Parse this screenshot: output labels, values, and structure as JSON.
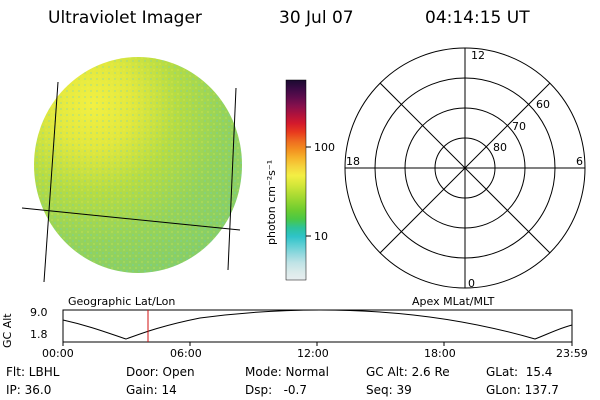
{
  "header": {
    "instrument": "Ultraviolet Imager",
    "date": "30 Jul 07",
    "time": "04:14:15 UT"
  },
  "colorbar": {
    "ticks": [
      "100",
      "10"
    ],
    "label": "photon cm⁻²s⁻¹",
    "colors": [
      "#e9eef0",
      "#d9eaea",
      "#bfe3e6",
      "#92d8de",
      "#5fcfd4",
      "#2fc3c9",
      "#2dc39a",
      "#4ac846",
      "#6ccc30",
      "#90d530",
      "#b4de34",
      "#d6e73a",
      "#f3ef44",
      "#f5d53e",
      "#f6b52c",
      "#f39020",
      "#ee6a20",
      "#e83a1e",
      "#d41a2c",
      "#b0123c",
      "#86104c",
      "#5e0c4c",
      "#3a0a44",
      "#1a0a30"
    ]
  },
  "geo_panel": {
    "label": "Geographic Lat/Lon"
  },
  "polar_panel": {
    "label": "Apex MLat/MLT",
    "mlt_labels": {
      "top": "12",
      "left": "18",
      "right": "6",
      "bottom": "0"
    },
    "lat_labels": [
      "60",
      "70",
      "80"
    ]
  },
  "altitude_plot": {
    "axis_label": "GC Alt",
    "y_ticks": [
      "9.0",
      "1.8"
    ],
    "x_ticks": [
      "00:00",
      "06:00",
      "12:00",
      "18:00",
      "23:59"
    ],
    "current_time_marker": "04:14"
  },
  "status": {
    "flt": "Flt: LBHL",
    "ip": "IP: 36.0",
    "door": "Door: Open",
    "gain": "Gain: 14",
    "mode": "Mode: Normal",
    "dsp": "Dsp:   -0.7",
    "gc_alt": "GC Alt: 2.6 Re",
    "seq": "Seq: 39",
    "glat": "GLat:  15.4",
    "glon": "GLon: 137.7"
  }
}
